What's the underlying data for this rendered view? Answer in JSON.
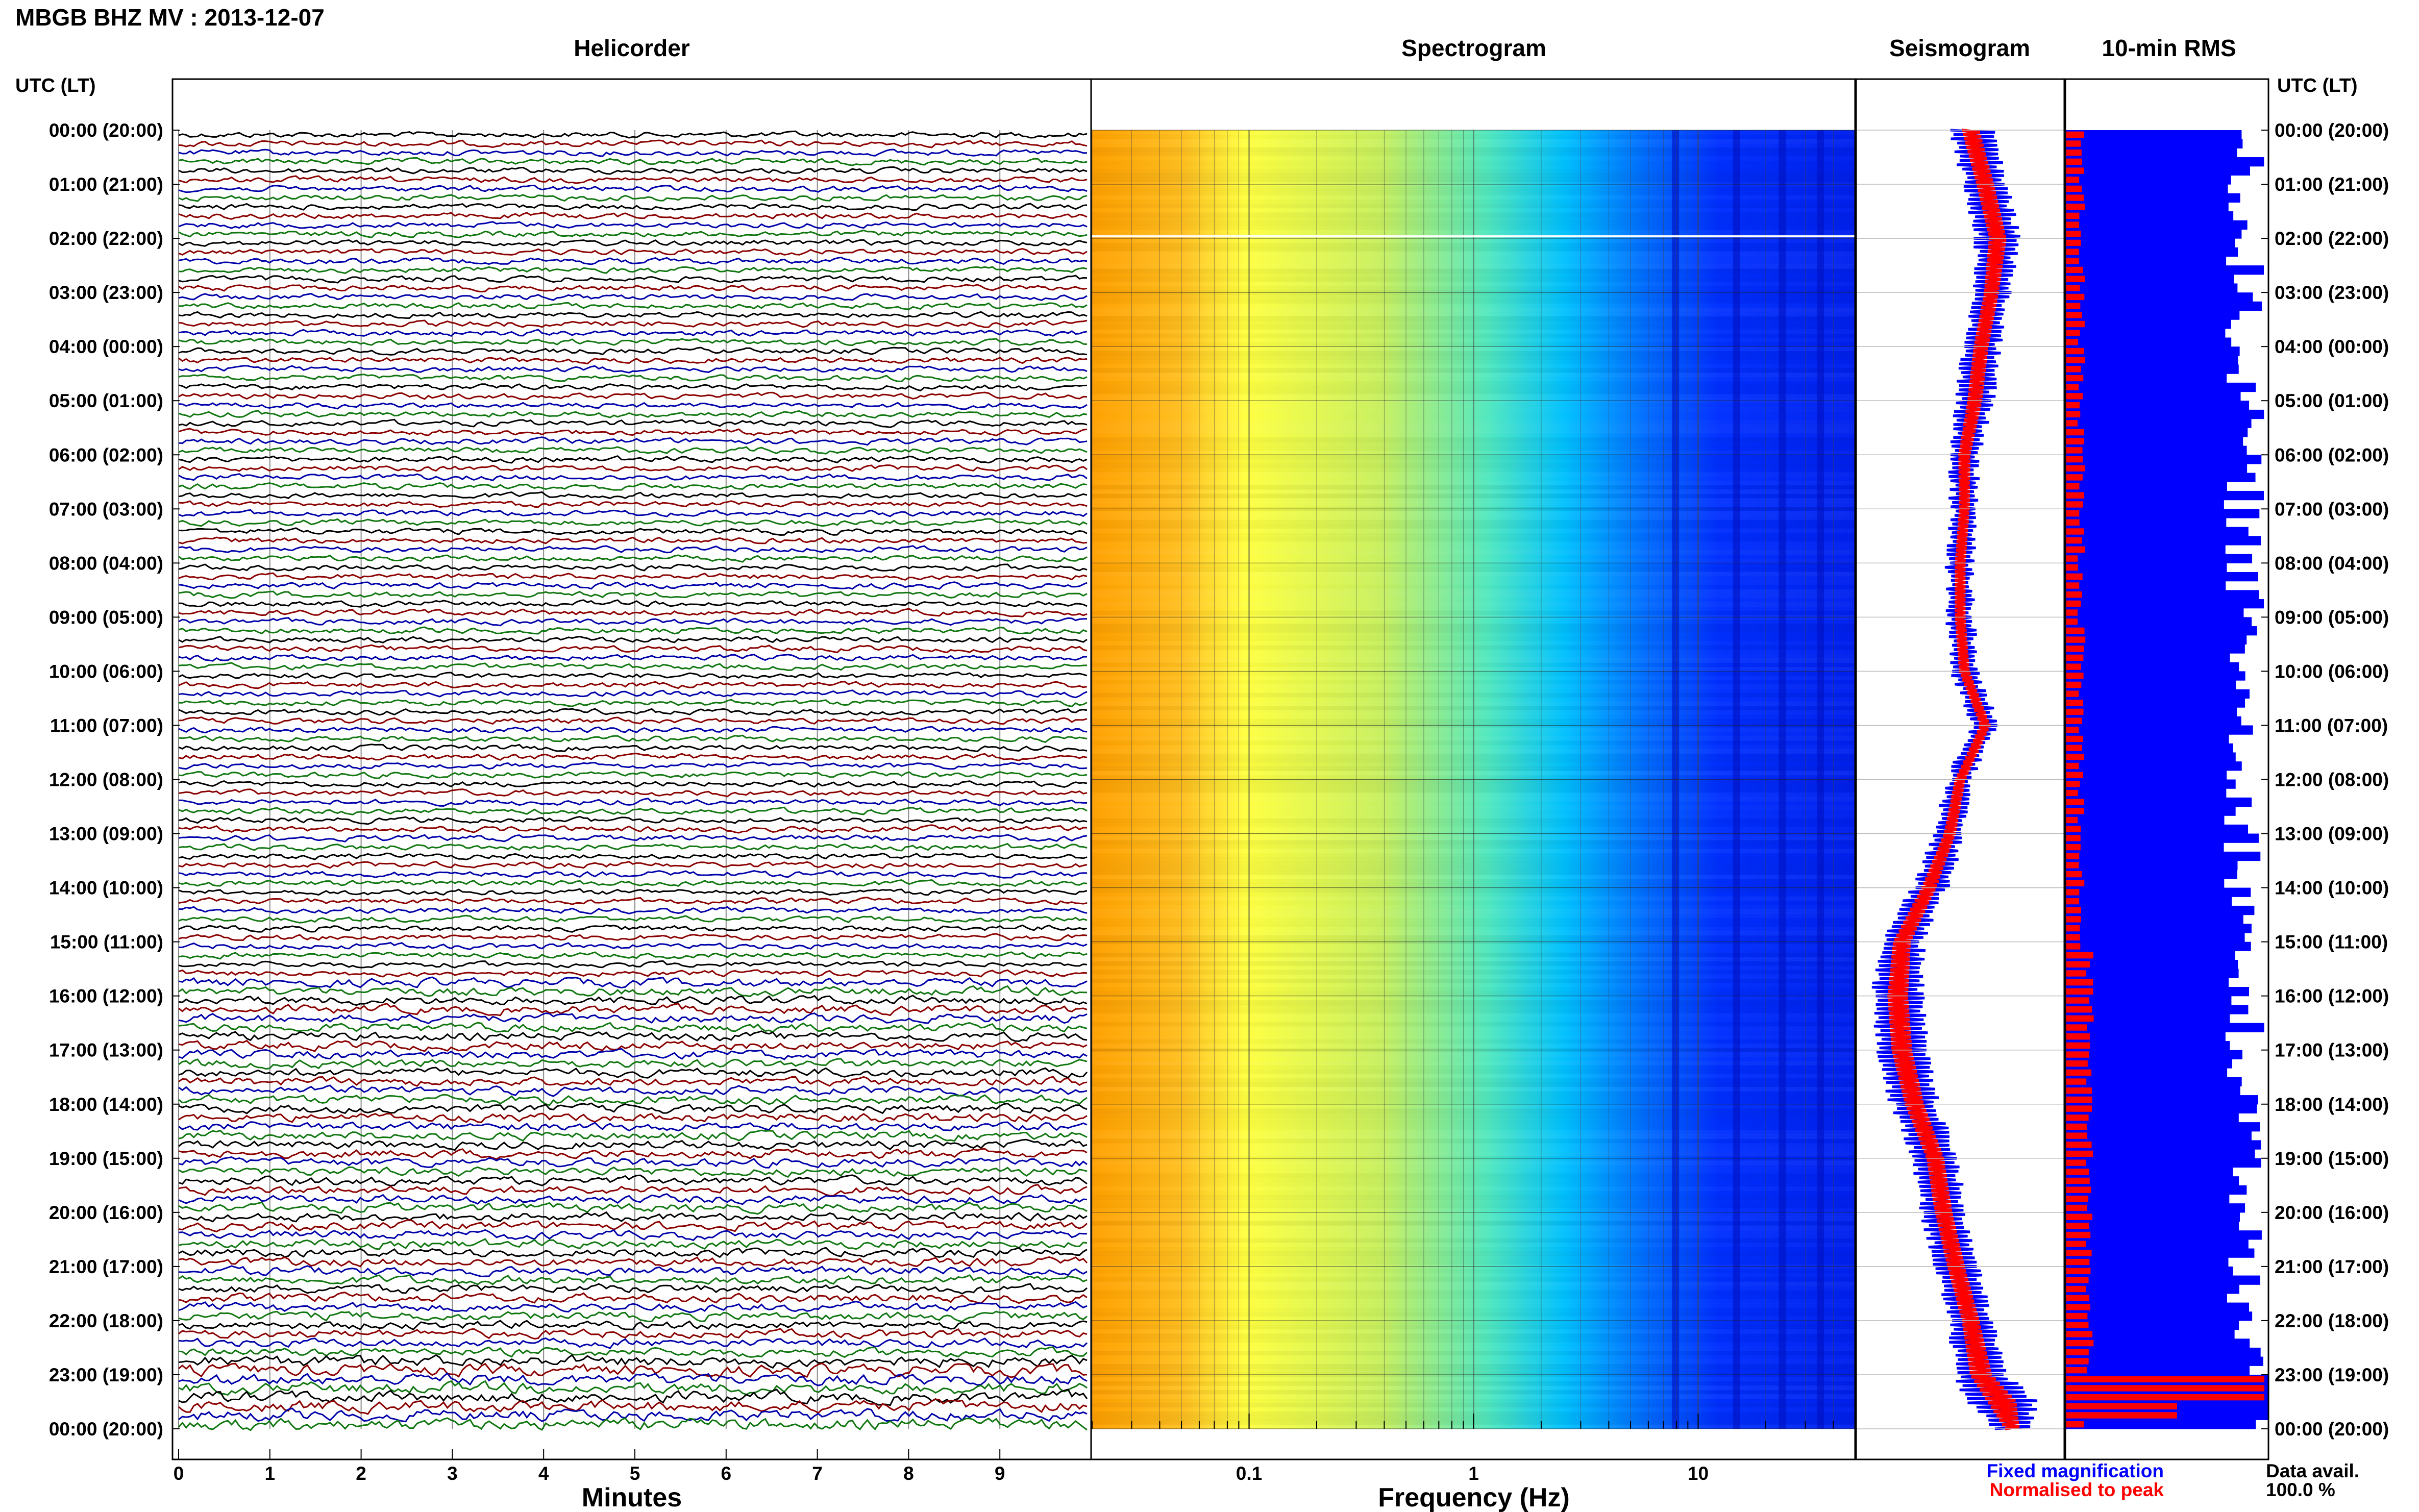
{
  "header": {
    "title": "MBGB BHZ MV : 2013-12-07"
  },
  "panels": {
    "helicorder": "Helicorder",
    "spectrogram": "Spectrogram",
    "seismogram": "Seismogram",
    "rms": "10-min RMS"
  },
  "axis_labels": {
    "time_left": "UTC (LT)",
    "time_right": "UTC (LT)",
    "minutes": "Minutes",
    "frequency": "Frequency (Hz)"
  },
  "legend": {
    "fixed": "Fixed magnification",
    "normalised": "Normalised to peak",
    "fixed_color": "#0000ff",
    "normalised_color": "#ff0000"
  },
  "availability": {
    "label": "Data avail.",
    "value": "100.0 %"
  },
  "colors": {
    "trace_cycle": [
      "#000000",
      "#8b0000",
      "#0000aa",
      "#117711"
    ],
    "spectrogram_low": "#ffa000",
    "spectrogram_mid": "#ffff40",
    "spectrogram_high": "#00c0ff",
    "spectrogram_top": "#0020ff"
  },
  "chart_data": [
    {
      "type": "line",
      "name": "helicorder",
      "title": "Helicorder",
      "xlabel": "Minutes",
      "xlim": [
        0,
        10
      ],
      "x_ticks": [
        "0",
        "1",
        "2",
        "3",
        "4",
        "5",
        "6",
        "7",
        "8",
        "9"
      ],
      "rows_per_hour": 6,
      "hours": 24,
      "y_ticks": [
        "00:00 (20:00)",
        "01:00 (21:00)",
        "02:00 (22:00)",
        "03:00 (23:00)",
        "04:00 (00:00)",
        "05:00 (01:00)",
        "06:00 (02:00)",
        "07:00 (03:00)",
        "08:00 (04:00)",
        "09:00 (05:00)",
        "10:00 (06:00)",
        "11:00 (07:00)",
        "12:00 (08:00)",
        "13:00 (09:00)",
        "14:00 (10:00)",
        "15:00 (11:00)",
        "16:00 (12:00)",
        "17:00 (13:00)",
        "18:00 (14:00)",
        "19:00 (15:00)",
        "20:00 (16:00)",
        "21:00 (17:00)",
        "22:00 (18:00)",
        "23:00 (19:00)",
        "00:00 (20:00)"
      ]
    },
    {
      "type": "heatmap",
      "name": "spectrogram",
      "title": "Spectrogram",
      "xlabel": "Frequency (Hz)",
      "xscale": "log",
      "xlim": [
        0.02,
        50
      ],
      "x_ticks": [
        "0.1",
        "1",
        "10"
      ],
      "x_tick_values": [
        0.1,
        1,
        10
      ]
    },
    {
      "type": "line",
      "name": "seismogram",
      "title": "Seismogram",
      "series": [
        {
          "name": "Fixed magnification",
          "color": "#0000ff"
        },
        {
          "name": "Normalised to peak",
          "color": "#ff0000"
        }
      ],
      "hours": [
        0,
        1,
        2,
        3,
        4,
        5,
        6,
        7,
        8,
        9,
        10,
        11,
        12,
        13,
        14,
        15,
        16,
        17,
        18,
        19,
        20,
        21,
        22,
        23,
        23.5,
        24
      ],
      "center": [
        0.55,
        0.62,
        0.68,
        0.65,
        0.6,
        0.57,
        0.52,
        0.52,
        0.5,
        0.5,
        0.52,
        0.62,
        0.5,
        0.45,
        0.35,
        0.22,
        0.2,
        0.22,
        0.28,
        0.38,
        0.42,
        0.48,
        0.55,
        0.6,
        0.7,
        0.75
      ],
      "spread": [
        0.12,
        0.12,
        0.12,
        0.1,
        0.1,
        0.1,
        0.08,
        0.07,
        0.07,
        0.07,
        0.07,
        0.07,
        0.07,
        0.08,
        0.1,
        0.12,
        0.14,
        0.14,
        0.13,
        0.12,
        0.12,
        0.12,
        0.12,
        0.15,
        0.2,
        0.1
      ]
    },
    {
      "type": "bar",
      "name": "rms",
      "title": "10-min RMS",
      "orientation": "horizontal",
      "bins": 144,
      "series": [
        {
          "name": "Fixed magnification",
          "color": "#0000ff"
        },
        {
          "name": "Normalised to peak",
          "color": "#ff0000"
        }
      ]
    }
  ]
}
